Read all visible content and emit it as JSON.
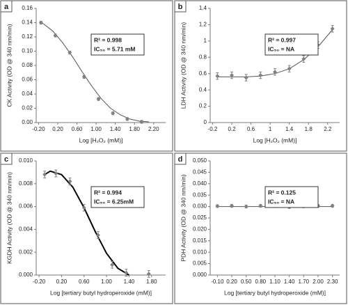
{
  "chart_data": [
    {
      "type": "scatter",
      "panel_label": "a",
      "ylabel": "CK Activity (OD @ 340 nm/min)",
      "xlabel": "Log [H₂O₂ (mM)]",
      "annotations": [
        "R² = 0.998",
        "IC₅₀ = 5.71 mM"
      ],
      "color": "#808080",
      "curve_color": "#555555",
      "x": [
        -0.15,
        0.15,
        0.45,
        0.75,
        1.05,
        1.35,
        1.65,
        1.95
      ],
      "values": [
        0.14,
        0.122,
        0.098,
        0.064,
        0.033,
        0.013,
        0.005,
        0.001
      ],
      "errors": [
        0.002,
        0.002,
        0.002,
        0.002,
        0.002,
        0.002,
        0.002,
        0.002
      ],
      "curve": {
        "x": [
          -0.15,
          0.1,
          0.3,
          0.5,
          0.7,
          0.9,
          1.1,
          1.3,
          1.5,
          1.7,
          1.9,
          2.1
        ],
        "values": [
          0.141,
          0.128,
          0.112,
          0.093,
          0.072,
          0.052,
          0.034,
          0.02,
          0.011,
          0.005,
          0.002,
          0.001
        ]
      },
      "xlim": [
        -0.25,
        2.45
      ],
      "ylim": [
        0,
        0.16
      ],
      "xticks": [
        {
          "value": -0.2,
          "label": "-0.20"
        },
        {
          "value": 0.2,
          "label": "0.20"
        },
        {
          "value": 0.6,
          "label": "0.60"
        },
        {
          "value": 1,
          "label": "1.00"
        },
        {
          "value": 1.4,
          "label": "1.40"
        },
        {
          "value": 1.8,
          "label": "1.80"
        },
        {
          "value": 2.2,
          "label": "2.20"
        }
      ],
      "yticks": [
        {
          "value": 0,
          "label": "0.00"
        },
        0.02,
        0.04,
        0.06,
        0.08,
        {
          "value": 0.1,
          "label": "0.10"
        },
        0.12,
        0.14,
        0.16
      ]
    },
    {
      "type": "scatter",
      "panel_label": "b",
      "ylabel": "LDH Activity (OD @ 340 nm/min)",
      "xlabel": "Log [H₂O₂ (mM)]",
      "annotations": [
        "R² = 0.997",
        "IC₅₀ = NA"
      ],
      "color": "#808080",
      "curve_color": "#555555",
      "x": [
        -0.1,
        0.2,
        0.5,
        0.8,
        1.1,
        1.4,
        1.7,
        2.0,
        2.3
      ],
      "values": [
        0.57,
        0.58,
        0.55,
        0.58,
        0.62,
        0.66,
        0.78,
        0.95,
        1.15
      ],
      "errors": [
        0.04,
        0.04,
        0.04,
        0.04,
        0.04,
        0.04,
        0.04,
        0.04,
        0.04
      ],
      "curve": {
        "x": [
          -0.1,
          0.2,
          0.5,
          0.8,
          1.1,
          1.4,
          1.7,
          2.0,
          2.3
        ],
        "values": [
          0.56,
          0.56,
          0.56,
          0.57,
          0.6,
          0.66,
          0.77,
          0.93,
          1.14
        ]
      },
      "xlim": [
        -0.25,
        2.45
      ],
      "ylim": [
        0,
        1.4
      ],
      "xticks": [
        -0.2,
        0.2,
        0.6,
        1,
        1.4,
        1.8,
        2.2
      ],
      "yticks": [
        0,
        0.2,
        0.4,
        0.6,
        0.8,
        1,
        1.2,
        1.4
      ]
    },
    {
      "type": "scatter",
      "panel_label": "c",
      "ylabel": "KGDH Activity (OD @ 340 nm/min)",
      "xlabel": "Log [tertiary butyl hydroperoxide (mM)]",
      "annotations": [
        "R² = 0.994",
        "IC₅₀ = 6.25mM"
      ],
      "color": "#808080",
      "curve_color": "#000000",
      "x": [
        -0.1,
        0.1,
        0.35,
        0.6,
        0.85,
        1.1,
        1.35,
        1.75
      ],
      "values": [
        0.0088,
        0.0089,
        0.0082,
        0.0059,
        0.0035,
        0.0009,
        0.0002,
        0.0001
      ],
      "errors": [
        0.0003,
        0.0003,
        0.0003,
        0.0003,
        0.0003,
        0.0003,
        0.0003,
        0.0003
      ],
      "curve": {
        "x": [
          -0.1,
          0.0,
          0.2,
          0.4,
          0.6,
          0.8,
          1.0,
          1.2,
          1.4
        ],
        "values": [
          0.0088,
          0.0091,
          0.0088,
          0.0077,
          0.0059,
          0.0038,
          0.0019,
          0.0006,
          0.0
        ]
      },
      "xlim": [
        -0.25,
        2.05
      ],
      "ylim": [
        0,
        0.01
      ],
      "xticks": [
        {
          "value": -0.2,
          "label": "-0.20"
        },
        {
          "value": 0.2,
          "label": "0.20"
        },
        {
          "value": 0.6,
          "label": "0.60"
        },
        {
          "value": 1,
          "label": "1.00"
        },
        {
          "value": 1.4,
          "label": "1.40"
        },
        {
          "value": 1.8,
          "label": "1.80"
        }
      ],
      "yticks": [
        {
          "value": 0,
          "label": "0.000"
        },
        0.002,
        0.004,
        0.006,
        0.008,
        {
          "value": 0.01,
          "label": "0.010"
        }
      ]
    },
    {
      "type": "scatter",
      "panel_label": "d",
      "ylabel": "PDH Activity (OD @ 340 nm/min)",
      "xlabel": "Log [tertiary butyl hydroperoxide (mM)]",
      "annotations": [
        "R² = 0.125",
        "IC₅₀ = NA"
      ],
      "color": "#808080",
      "curve_color": "#555555",
      "x": [
        -0.1,
        0.2,
        0.5,
        0.8,
        1.1,
        1.4,
        1.7,
        2.0,
        2.3
      ],
      "values": [
        0.0302,
        0.0303,
        0.03,
        0.0303,
        0.0302,
        0.0298,
        0.0301,
        0.0303,
        0.0303
      ],
      "errors": [
        0.0006,
        0.0006,
        0.0006,
        0.0006,
        0.0006,
        0.0006,
        0.0006,
        0.0006,
        0.0006
      ],
      "curve": {
        "x": [
          -0.1,
          2.3
        ],
        "values": [
          0.03,
          0.03
        ]
      },
      "xlim": [
        -0.25,
        2.45
      ],
      "ylim": [
        0,
        0.05
      ],
      "xticks": [
        {
          "value": -0.1,
          "label": "-0.10"
        },
        {
          "value": 0.2,
          "label": "0.20"
        },
        {
          "value": 0.5,
          "label": "0.50"
        },
        {
          "value": 0.8,
          "label": "0.80"
        },
        {
          "value": 1.1,
          "label": "1.10"
        },
        {
          "value": 1.4,
          "label": "1.40"
        },
        {
          "value": 1.7,
          "label": "1.70"
        },
        {
          "value": 2,
          "label": "2.00"
        },
        {
          "value": 2.3,
          "label": "2.30"
        }
      ],
      "yticks": [
        {
          "value": 0,
          "label": "0.000"
        },
        0.005,
        {
          "value": 0.01,
          "label": "0.010"
        },
        0.015,
        {
          "value": 0.02,
          "label": "0.020"
        },
        0.025,
        {
          "value": 0.03,
          "label": "0.030"
        },
        0.035,
        {
          "value": 0.04,
          "label": "0.040"
        },
        0.045,
        {
          "value": 0.05,
          "label": "0.050"
        }
      ]
    }
  ]
}
